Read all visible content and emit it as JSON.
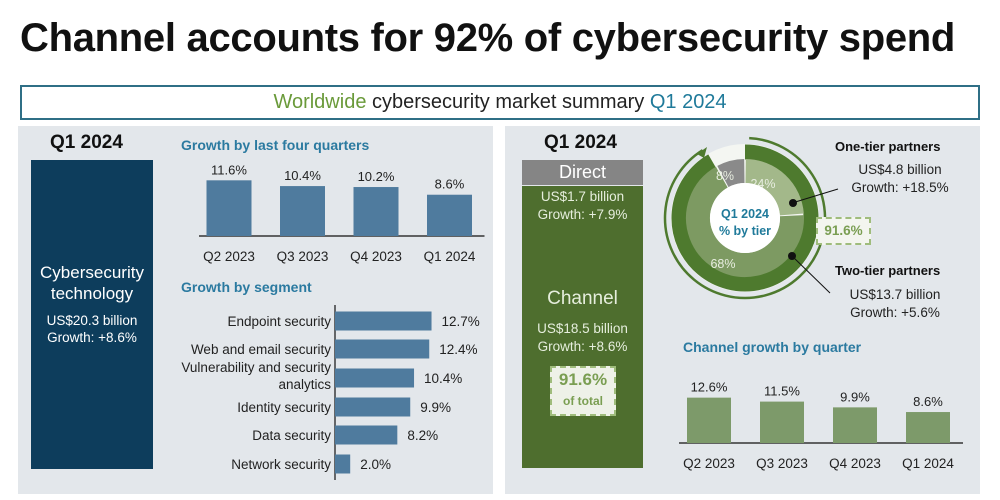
{
  "title": "Channel accounts for 92% of cybersecurity spend",
  "summary": {
    "part1": "Worldwide",
    "part2": " cybersecurity market summary ",
    "part3": "Q1 2024",
    "color1": "#6a9a3a",
    "color3": "#1f7a9a"
  },
  "left": {
    "period": "Q1 2024",
    "block_title": "Cybersecurity technology",
    "block_value": "US$20.3 billion",
    "block_growth": "Growth: +8.6%",
    "block_color": "#0d3d5c"
  },
  "right": {
    "period": "Q1 2024",
    "direct_label": "Direct",
    "direct_value": "US$1.7 billion",
    "direct_growth": "Growth: +7.9%",
    "channel_label": "Channel",
    "channel_value": "US$18.5 billion",
    "channel_growth": "Growth: +8.6%",
    "channel_share": "91.6%",
    "channel_share_note": "of total",
    "donut_center": "Q1 2024",
    "donut_center2": "% by tier",
    "donut_badge": "91.6%",
    "one_tier": {
      "label": "One-tier partners",
      "value": "US$4.8 billion",
      "growth": "Growth: +18.5%"
    },
    "two_tier": {
      "label": "Two-tier partners",
      "value": "US$13.7 billion",
      "growth": "Growth: +5.6%"
    }
  },
  "chart_data": [
    {
      "type": "bar",
      "title": "Growth by last four quarters",
      "categories": [
        "Q2 2023",
        "Q3 2023",
        "Q4 2023",
        "Q1 2024"
      ],
      "values": [
        11.6,
        10.4,
        10.2,
        8.6
      ],
      "labels": [
        "11.6%",
        "10.4%",
        "10.2%",
        "8.6%"
      ],
      "color": "#4f7b9e"
    },
    {
      "type": "bar",
      "orientation": "horizontal",
      "title": "Growth by segment",
      "categories": [
        "Endpoint security",
        "Web and email security",
        "Vulnerability and security analytics",
        "Identity security",
        "Data security",
        "Network security"
      ],
      "values": [
        12.7,
        12.4,
        10.4,
        9.9,
        8.2,
        2.0
      ],
      "labels": [
        "12.7%",
        "12.4%",
        "10.4%",
        "9.9%",
        "8.2%",
        "2.0%"
      ],
      "color": "#4f7b9e"
    },
    {
      "type": "pie",
      "title": "Q1 2024 % by tier",
      "categories": [
        "One-tier partners",
        "Two-tier partners",
        "Direct"
      ],
      "values": [
        24,
        68,
        8
      ],
      "labels": [
        "24%",
        "68%",
        "8%"
      ],
      "colors": [
        "#a3b88a",
        "#7d9a62",
        "#8a8a8a"
      ]
    },
    {
      "type": "bar",
      "title": "Channel growth by quarter",
      "categories": [
        "Q2 2023",
        "Q3 2023",
        "Q4 2023",
        "Q1 2024"
      ],
      "values": [
        12.6,
        11.5,
        9.9,
        8.6
      ],
      "labels": [
        "12.6%",
        "11.5%",
        "9.9%",
        "8.6%"
      ],
      "color": "#7d9a6a"
    }
  ]
}
